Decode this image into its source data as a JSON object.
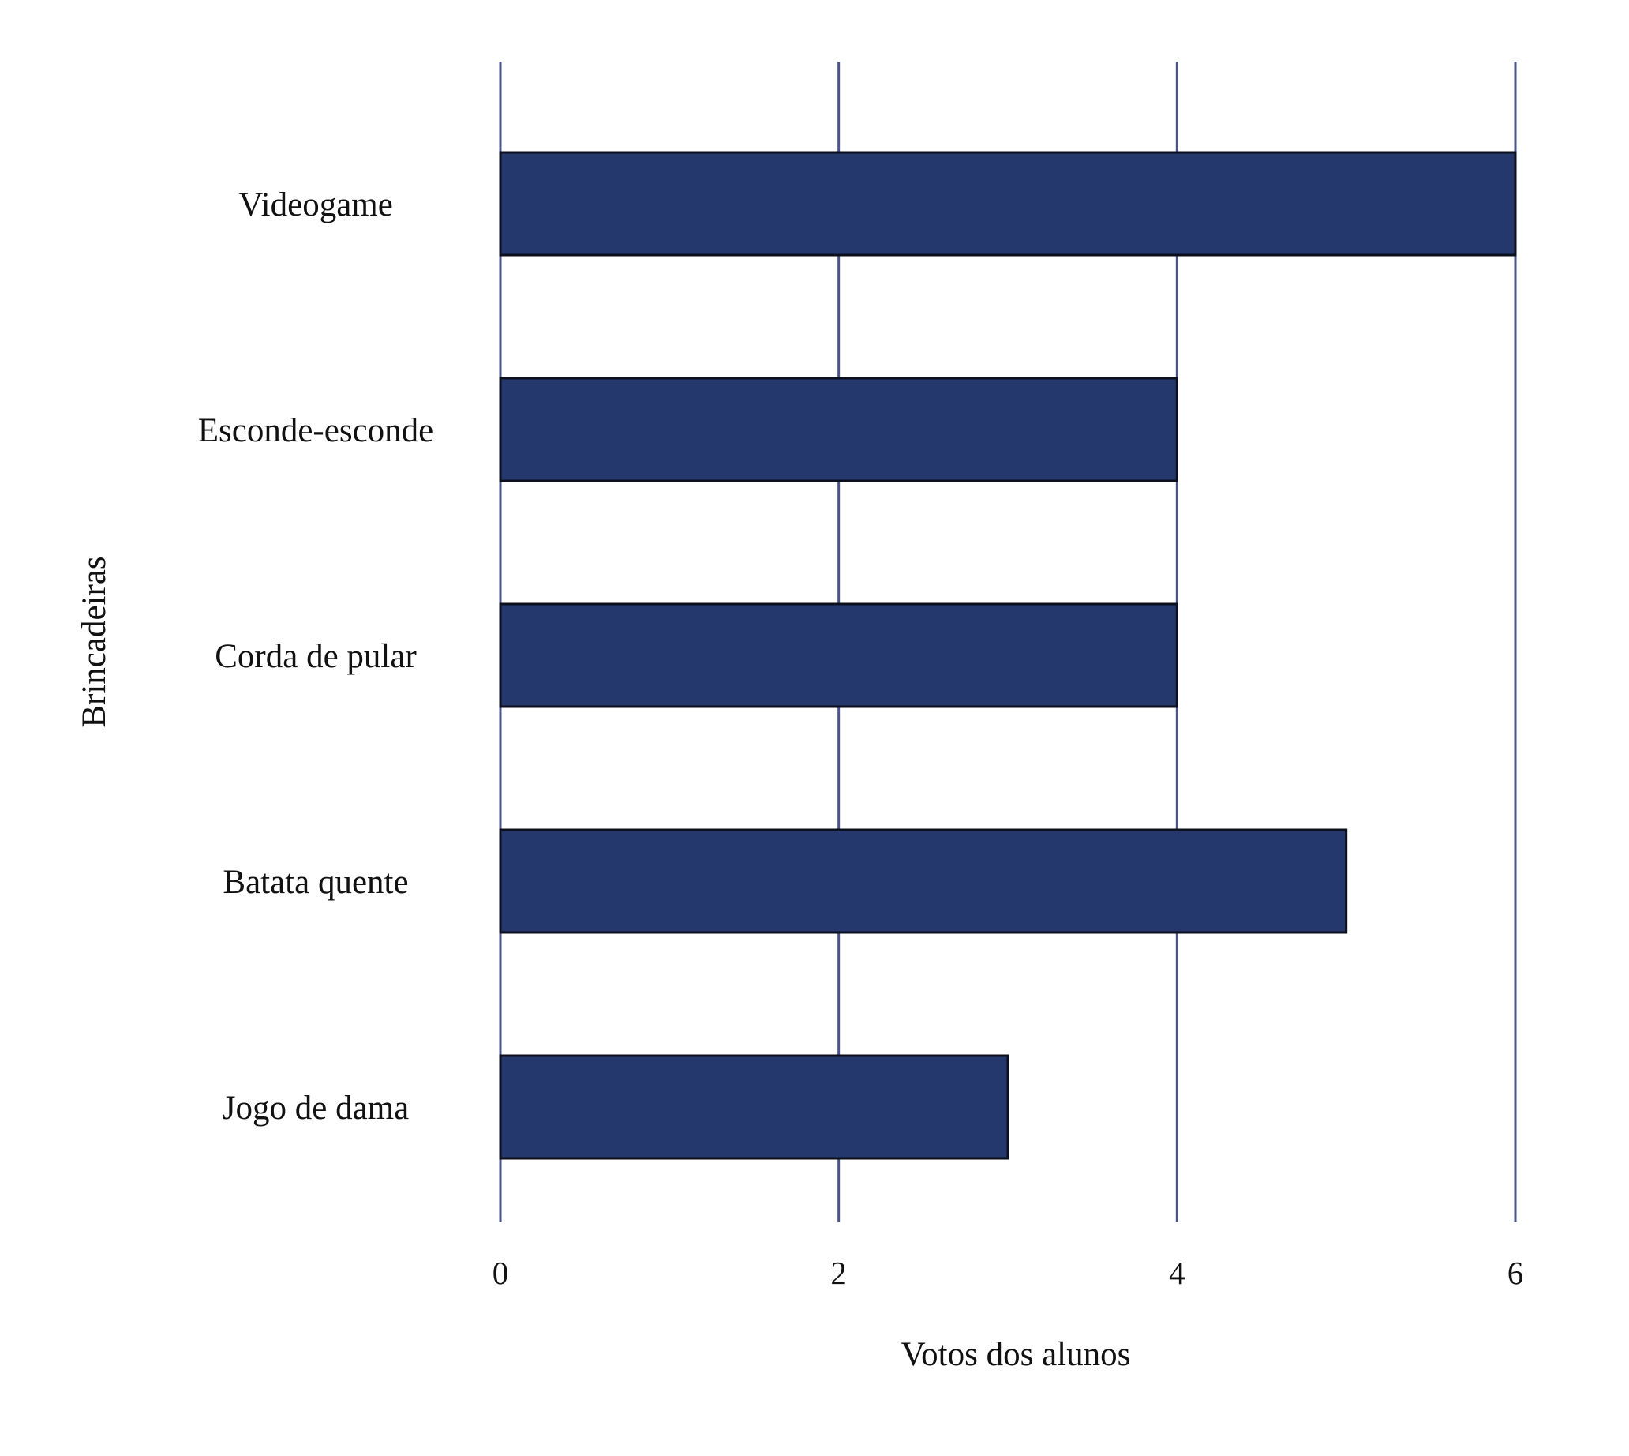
{
  "chart_data": {
    "type": "bar",
    "orientation": "horizontal",
    "categories": [
      "Videogame",
      "Esconde-esconde",
      "Corda de pular",
      "Batata quente",
      "Jogo de dama"
    ],
    "values": [
      6,
      4,
      4,
      5,
      3
    ],
    "xlabel": "Votos dos alunos",
    "ylabel": "Brincadeiras",
    "xticks": [
      0,
      2,
      4,
      6
    ],
    "xlim": [
      0,
      6
    ],
    "grid": "vertical",
    "bar_color": "#24386e",
    "grid_color": "#4a5488"
  }
}
